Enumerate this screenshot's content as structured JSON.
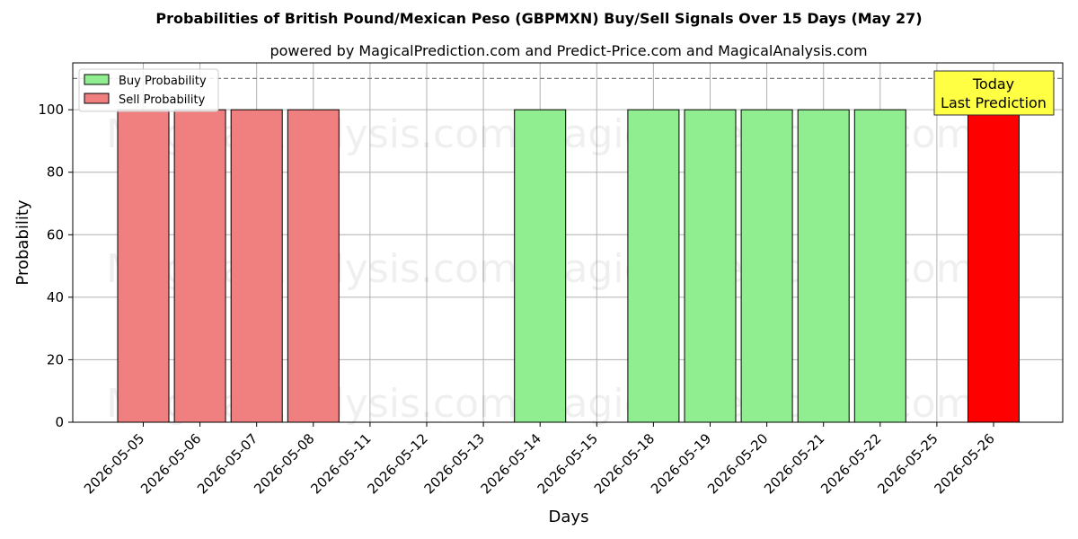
{
  "chart_data": {
    "type": "bar",
    "title": "Probabilities of British Pound/Mexican Peso (GBPMXN) Buy/Sell Signals Over 15 Days (May 27)",
    "subtitle": "powered by MagicalPrediction.com and Predict-Price.com and MagicalAnalysis.com",
    "xlabel": "Days",
    "ylabel": "Probability",
    "ylim": [
      0,
      115
    ],
    "yticks": [
      0,
      20,
      40,
      60,
      80,
      100
    ],
    "grid": true,
    "legend_placement": "top-left",
    "reference_line": 110,
    "categories": [
      "2026-05-05",
      "2026-05-06",
      "2026-05-07",
      "2026-05-08",
      "2026-05-11",
      "2026-05-12",
      "2026-05-13",
      "2026-05-14",
      "2026-05-15",
      "2026-05-18",
      "2026-05-19",
      "2026-05-20",
      "2026-05-21",
      "2026-05-22",
      "2026-05-25",
      "2026-05-26"
    ],
    "series": [
      {
        "name": "Buy Probability",
        "color": "#90ee90",
        "values": [
          0,
          0,
          0,
          0,
          0,
          0,
          0,
          100,
          0,
          100,
          100,
          100,
          100,
          100,
          0,
          0
        ]
      },
      {
        "name": "Sell Probability",
        "color": "#f08080",
        "values": [
          100,
          100,
          100,
          100,
          0,
          0,
          0,
          0,
          0,
          0,
          0,
          0,
          0,
          0,
          0,
          100
        ]
      }
    ],
    "highlight": {
      "category": "2026-05-26",
      "series": "Sell Probability",
      "color": "#ff0000"
    },
    "annotation": {
      "lines": [
        "Today",
        "Last Prediction"
      ],
      "box_color": "#ffff44"
    },
    "watermarks": [
      "MagicalAnalysis.com",
      "MagicalPrediction.com"
    ]
  }
}
